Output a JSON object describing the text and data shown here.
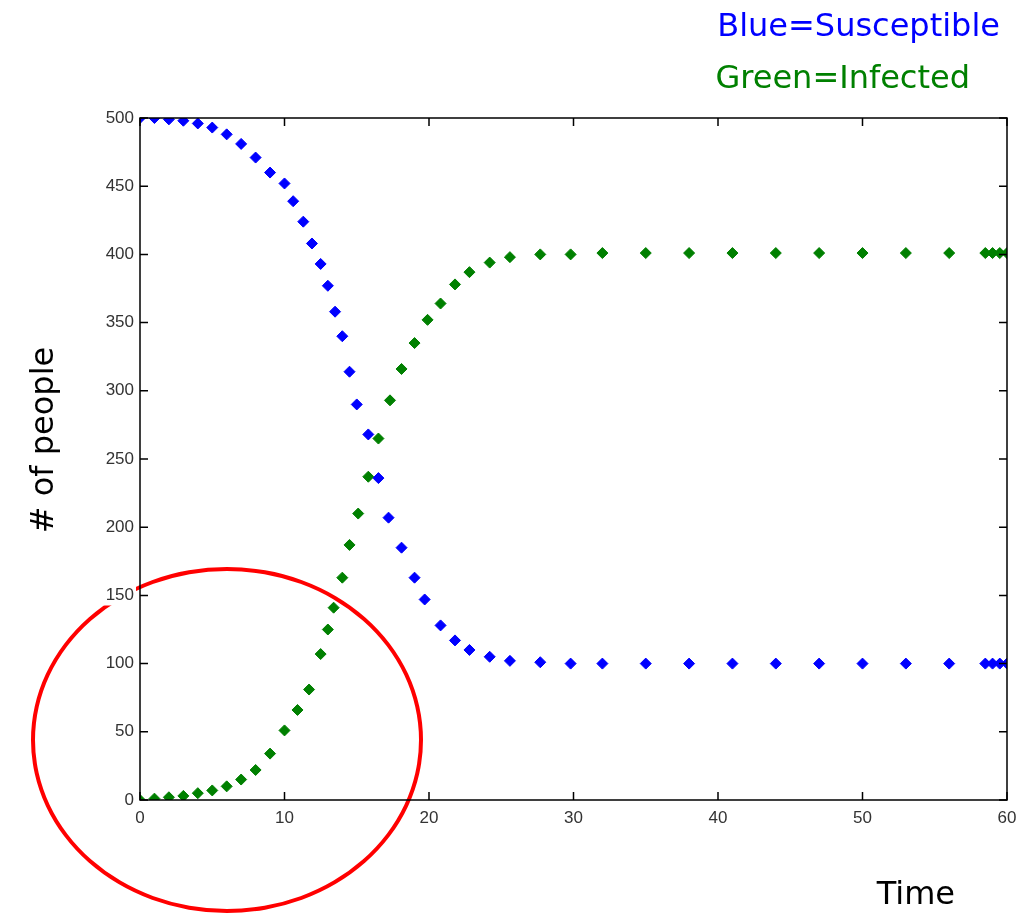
{
  "chart_data": {
    "type": "scatter",
    "xlabel": "Time",
    "ylabel": "# of people",
    "marker": "diamond",
    "xlim": [
      0,
      60
    ],
    "ylim": [
      0,
      500
    ],
    "xticks": [
      0,
      10,
      20,
      30,
      40,
      50,
      60
    ],
    "yticks": [
      0,
      50,
      100,
      150,
      200,
      250,
      300,
      350,
      400,
      450,
      500
    ],
    "grid": false,
    "series": [
      {
        "name": "Blue=Susceptible",
        "color": "#0000ff",
        "x": [
          0,
          1,
          2,
          3,
          4,
          5,
          6,
          7,
          8,
          9,
          10,
          10.6,
          11.3,
          11.9,
          12.5,
          13,
          13.5,
          14,
          14.5,
          15,
          15.8,
          16.5,
          17.2,
          18.1,
          19,
          19.7,
          20.8,
          21.8,
          22.8,
          24.2,
          25.6,
          27.7,
          29.8,
          32,
          35,
          38,
          41,
          44,
          47,
          50,
          53,
          56,
          58.5,
          59,
          59.5,
          60
        ],
        "values": [
          500,
          500,
          499,
          498,
          496,
          493,
          488,
          481,
          471,
          460,
          452,
          439,
          424,
          408,
          393,
          377,
          358,
          340,
          314,
          290,
          268,
          236,
          207,
          185,
          163,
          147,
          128,
          117,
          110,
          105,
          102,
          101,
          100,
          100,
          100,
          100,
          100,
          100,
          100,
          100,
          100,
          100,
          100,
          100,
          100,
          100
        ]
      },
      {
        "name": "Green=Infected",
        "color": "#008000",
        "x": [
          0,
          1,
          2,
          3,
          4,
          5,
          6,
          7,
          8,
          9,
          10,
          10.9,
          11.7,
          12.5,
          13,
          13.4,
          14,
          14.5,
          15.1,
          15.8,
          16.5,
          17.3,
          18.1,
          19,
          19.9,
          20.8,
          21.8,
          22.8,
          24.2,
          25.6,
          27.7,
          29.8,
          32,
          35,
          38,
          41,
          44,
          47,
          50,
          53,
          56,
          58.5,
          59,
          59.5,
          60
        ],
        "values": [
          0,
          1,
          2,
          3,
          5,
          7,
          10,
          15,
          22,
          34,
          51,
          66,
          81,
          107,
          125,
          141,
          163,
          187,
          210,
          237,
          265,
          293,
          316,
          335,
          352,
          364,
          378,
          387,
          394,
          398,
          400,
          400,
          401,
          401,
          401,
          401,
          401,
          401,
          401,
          401,
          401,
          401,
          401,
          401,
          401
        ]
      }
    ]
  }
}
